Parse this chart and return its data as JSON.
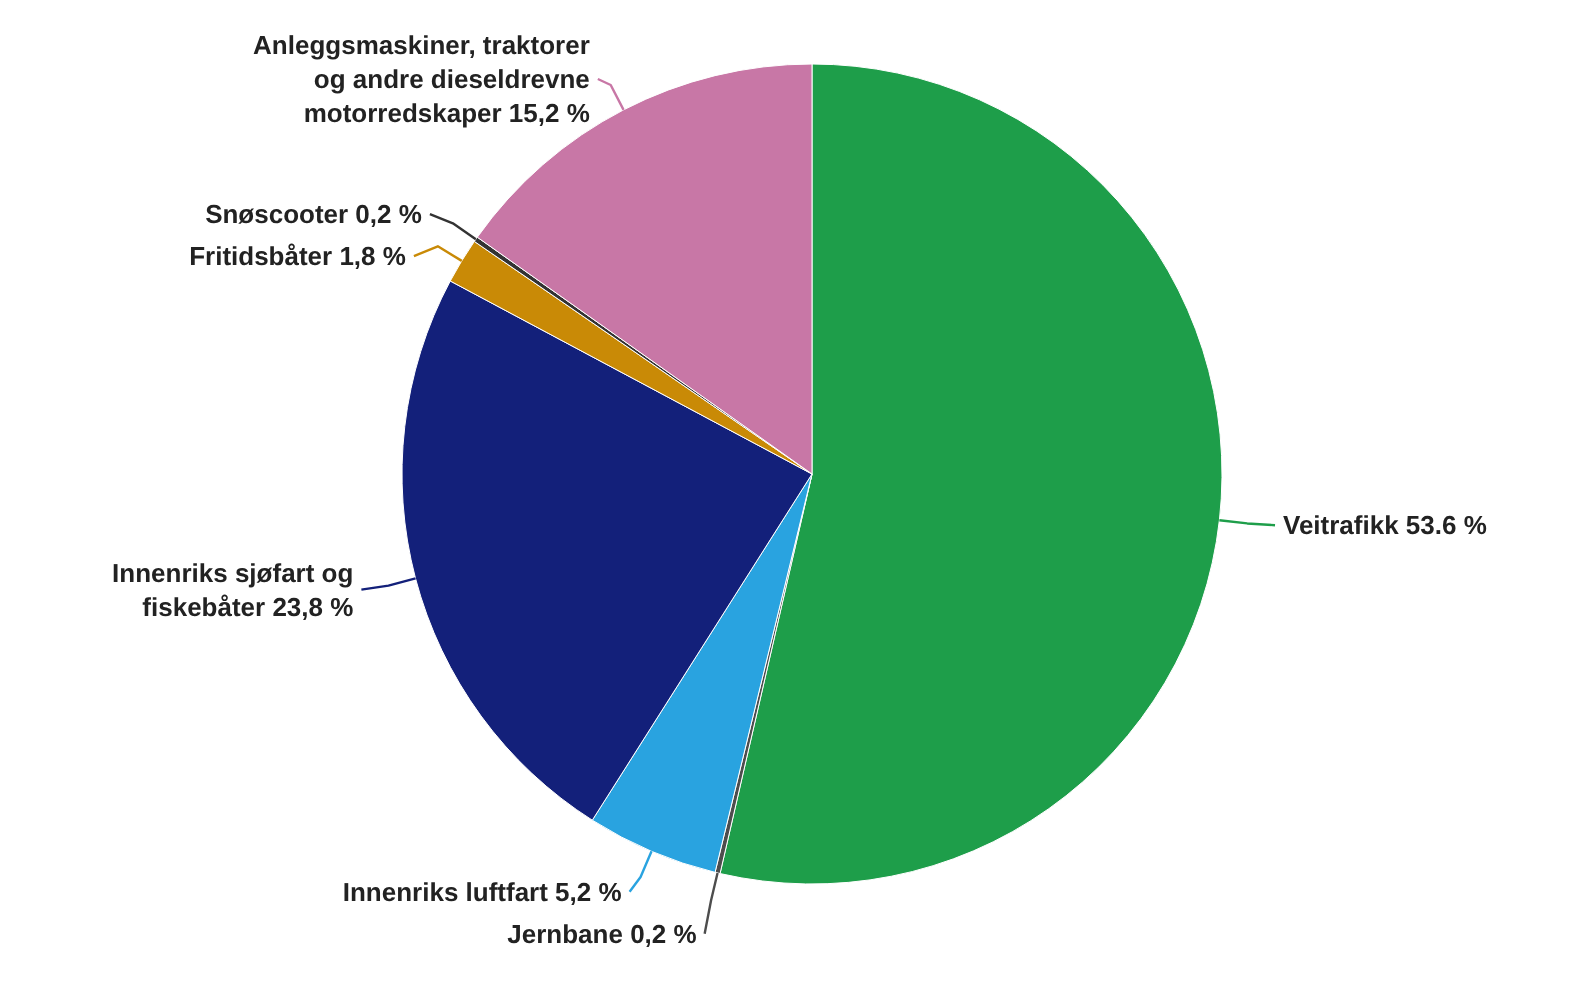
{
  "chart_data": {
    "type": "pie",
    "categories": [
      "Veitrafikk",
      "Jernbane",
      "Innenriks luftfart",
      "Innenriks sjøfart og fiskebåter",
      "Fritidsbåter",
      "Snøscooter",
      "Anleggsmaskiner, traktorer og andre dieseldrevne motorredskaper"
    ],
    "values": [
      53.6,
      0.2,
      5.2,
      23.8,
      1.8,
      0.2,
      15.2
    ],
    "value_labels": [
      "53.6 %",
      "0,2 %",
      "5,2 %",
      "23,8 %",
      "1,8 %",
      "0,2 %",
      "15,2 %"
    ],
    "colors": [
      "#1e9e4a",
      "#4d4d4d",
      "#29a3e0",
      "#13207a",
      "#c98a06",
      "#333333",
      "#c877a6"
    ]
  }
}
